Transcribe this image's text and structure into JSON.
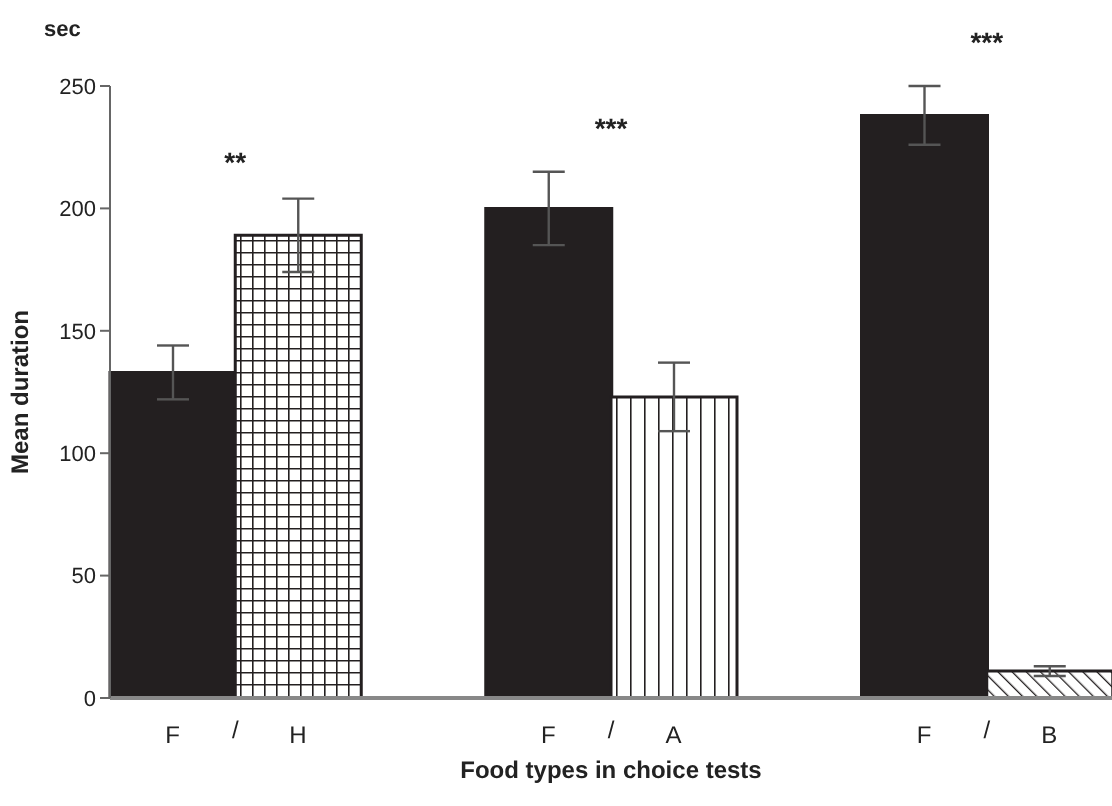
{
  "chart_data": {
    "type": "bar",
    "xlabel": "Food types in choice tests",
    "ylabel": "Mean duration",
    "categories": [
      "F",
      "H",
      null,
      "F",
      "A",
      null,
      "F",
      "B"
    ],
    "values": [
      133,
      189,
      null,
      200,
      123,
      null,
      238,
      11
    ],
    "errors": [
      11,
      15,
      null,
      15,
      14,
      null,
      12,
      2
    ],
    "colors": [
      "#231f20",
      "#231f20",
      null,
      "#231f20",
      "#231f20",
      null,
      "#231f20",
      "#231f20"
    ],
    "ylim": [
      0,
      250
    ],
    "yticks": [
      0,
      50,
      100,
      150,
      200,
      250
    ],
    "grid": false,
    "annotations": [
      "sec",
      "**",
      "***",
      "***",
      "/",
      "/",
      "/"
    ]
  }
}
